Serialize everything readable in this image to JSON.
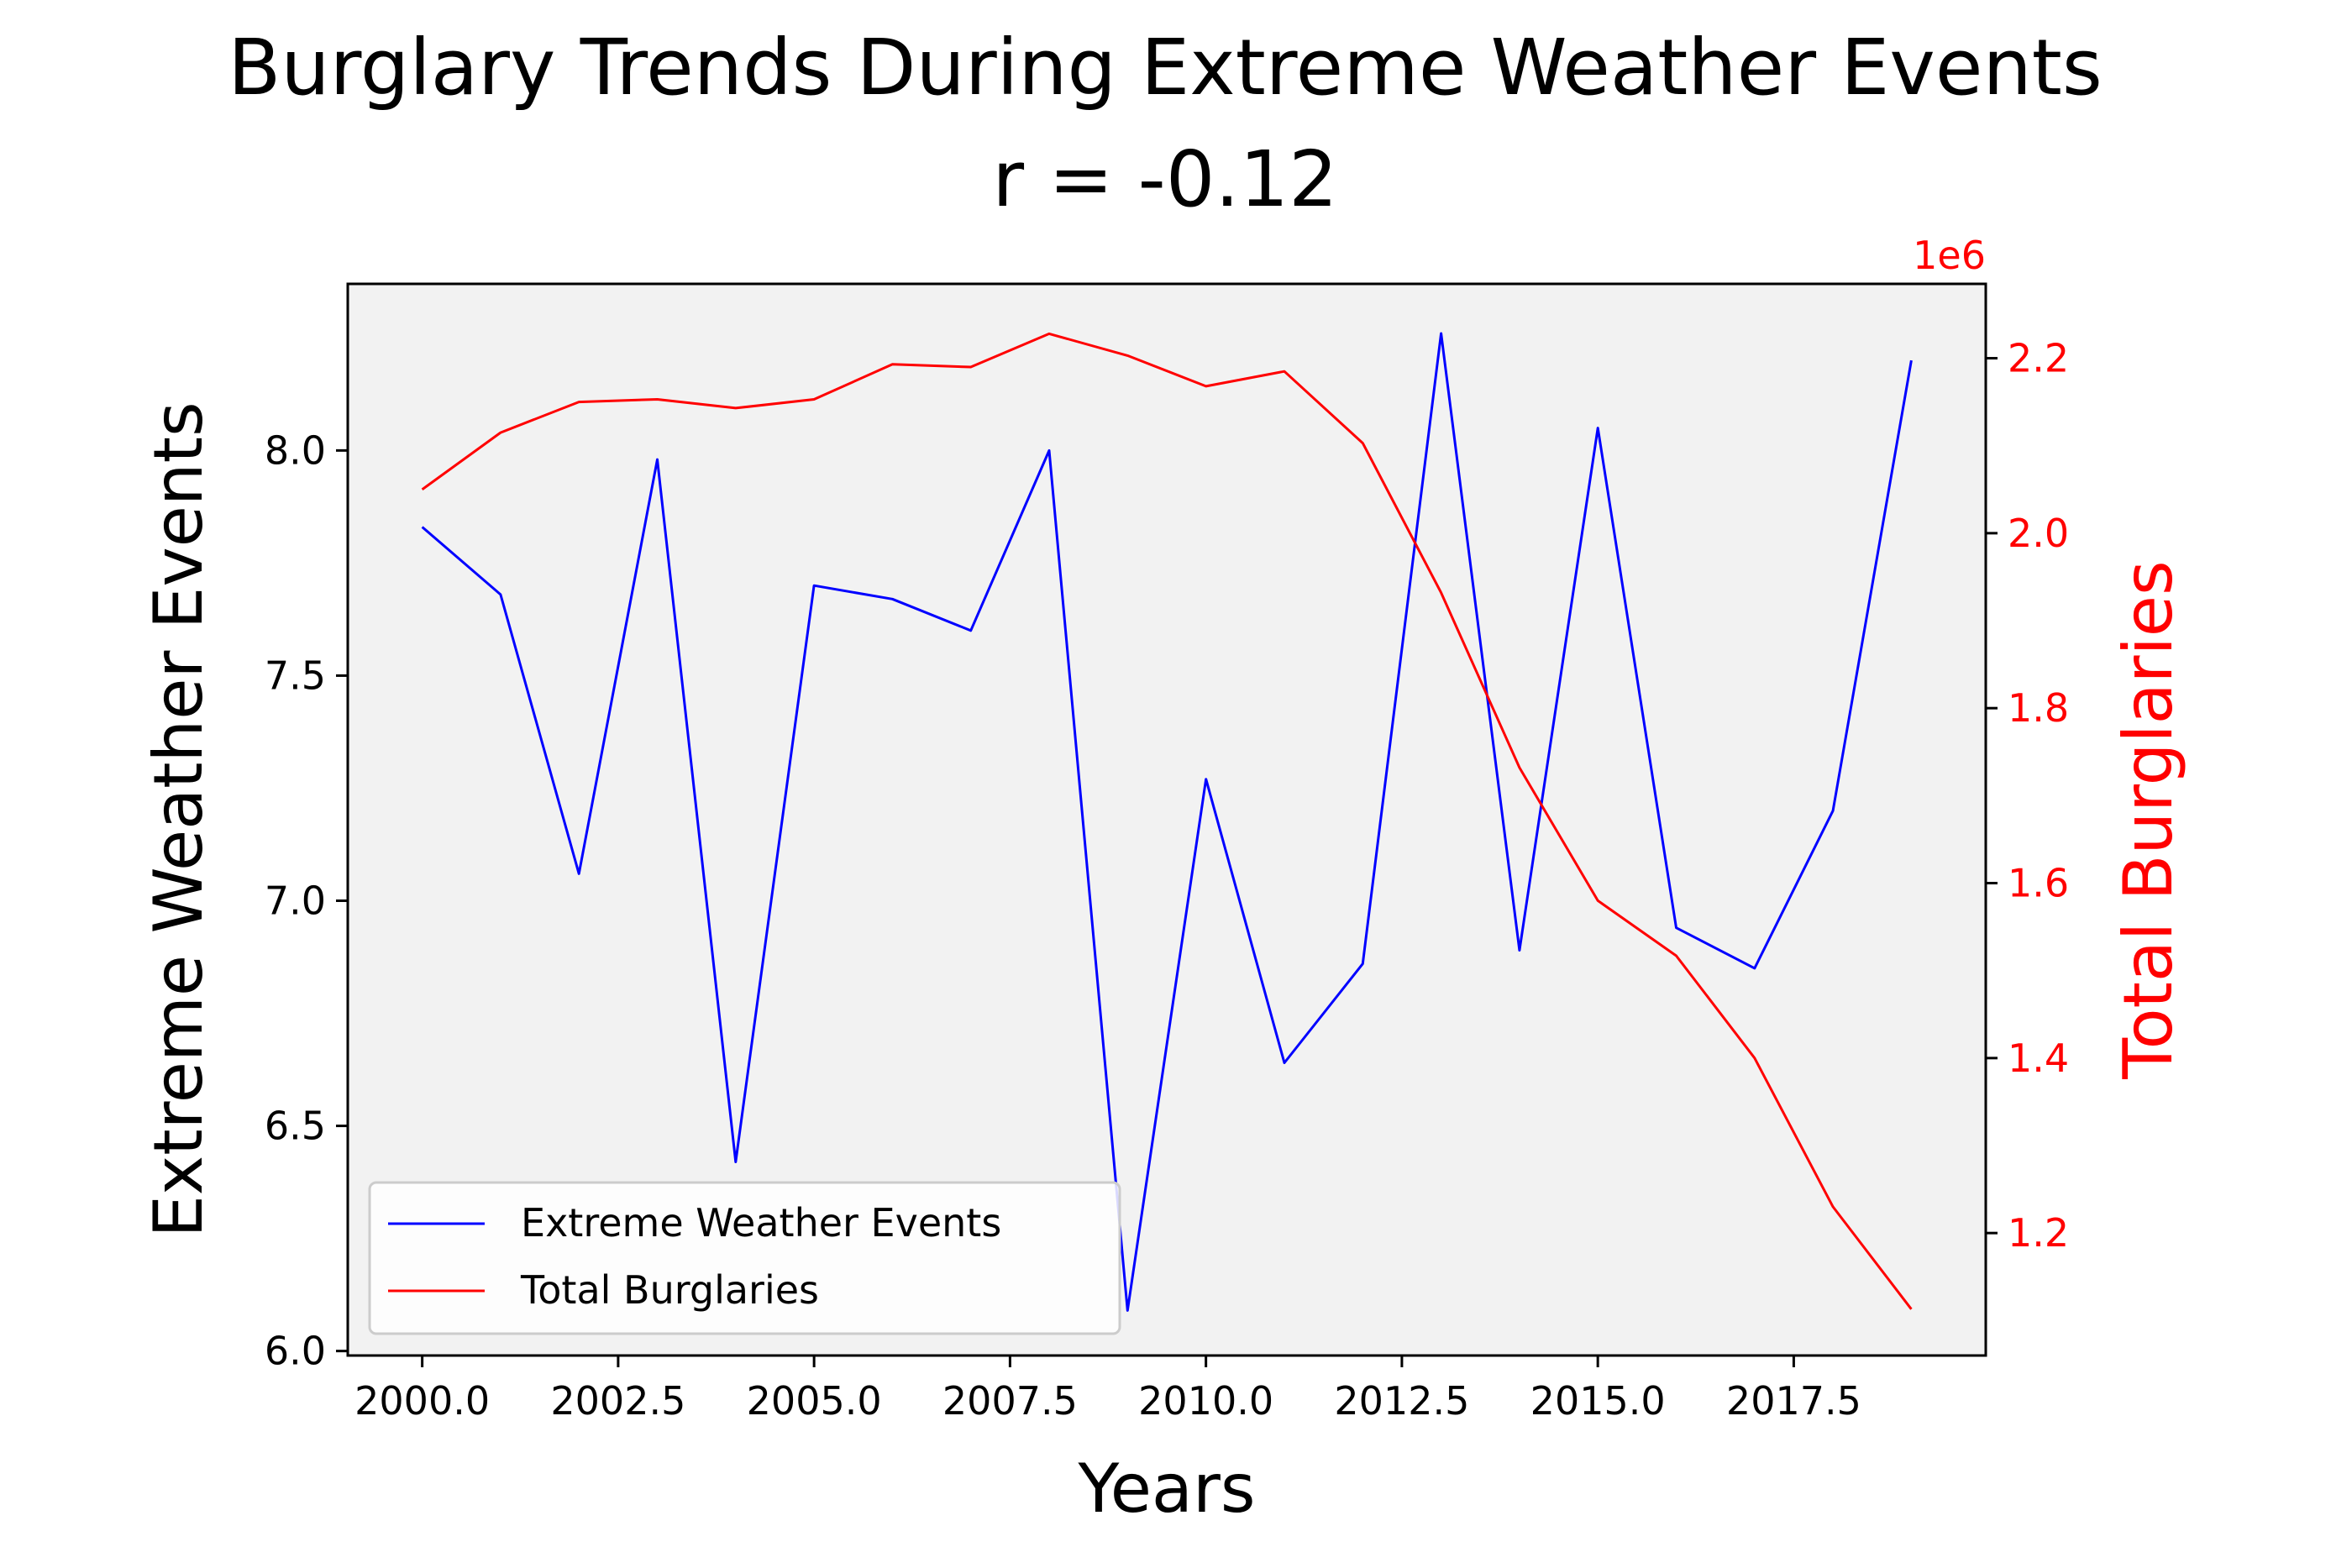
{
  "chart_data": {
    "type": "line",
    "title": "Burglary Trends During Extreme Weather Events",
    "subtitle": "r = -0.12",
    "xlabel": "Years",
    "ylabel_left": "Extreme Weather Events",
    "ylabel_right": "Total Burglaries",
    "right_axis_offset_label": "1e6",
    "x": [
      2000,
      2001,
      2002,
      2003,
      2004,
      2005,
      2006,
      2007,
      2008,
      2009,
      2010,
      2011,
      2012,
      2013,
      2014,
      2015,
      2016,
      2017,
      2018,
      2019
    ],
    "xlim": [
      1999.05,
      2019.95
    ],
    "x_ticks": [
      2000.0,
      2002.5,
      2005.0,
      2007.5,
      2010.0,
      2012.5,
      2015.0,
      2017.5
    ],
    "x_tick_labels": [
      "2000.0",
      "2002.5",
      "2005.0",
      "2007.5",
      "2010.0",
      "2012.5",
      "2015.0",
      "2017.5"
    ],
    "ylim_left": [
      5.99,
      8.37
    ],
    "y_ticks_left": [
      6.0,
      6.5,
      7.0,
      7.5,
      8.0
    ],
    "y_tick_labels_left": [
      "6.0",
      "6.5",
      "7.0",
      "7.5",
      "8.0"
    ],
    "ylim_right": [
      1.06,
      2.285
    ],
    "y_ticks_right": [
      1.2,
      1.4,
      1.6,
      1.8,
      2.0,
      2.2
    ],
    "y_tick_labels_right": [
      "1.2",
      "1.4",
      "1.6",
      "1.8",
      "2.0",
      "2.2"
    ],
    "series": [
      {
        "name": "Extreme Weather Events",
        "axis": "left",
        "color": "#0000ff",
        "values": [
          7.83,
          7.68,
          7.06,
          7.98,
          6.42,
          7.7,
          7.67,
          7.6,
          8.0,
          6.09,
          7.27,
          6.64,
          6.86,
          8.26,
          6.89,
          8.05,
          6.94,
          6.85,
          7.2,
          8.2
        ]
      },
      {
        "name": "Total Burglaries",
        "axis": "right",
        "color": "#ff0000",
        "values": [
          2.05,
          2.115,
          2.15,
          2.153,
          2.143,
          2.153,
          2.193,
          2.19,
          2.228,
          2.203,
          2.168,
          2.185,
          2.103,
          1.932,
          1.732,
          1.58,
          1.517,
          1.4,
          1.23,
          1.113
        ]
      }
    ],
    "legend_position": "lower-left",
    "grid": false,
    "plot_background": "#f2f2f2"
  }
}
